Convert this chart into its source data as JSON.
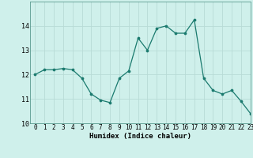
{
  "x": [
    0,
    1,
    2,
    3,
    4,
    5,
    6,
    7,
    8,
    9,
    10,
    11,
    12,
    13,
    14,
    15,
    16,
    17,
    18,
    19,
    20,
    21,
    22,
    23
  ],
  "y": [
    12.0,
    12.2,
    12.2,
    12.25,
    12.2,
    11.85,
    11.2,
    10.95,
    10.85,
    11.85,
    12.15,
    13.5,
    13.0,
    13.9,
    14.0,
    13.7,
    13.7,
    14.25,
    11.85,
    11.35,
    11.2,
    11.35,
    10.9,
    10.4
  ],
  "xlabel": "Humidex (Indice chaleur)",
  "ylim": [
    10,
    15
  ],
  "xlim": [
    -0.5,
    23
  ],
  "yticks": [
    10,
    11,
    12,
    13,
    14
  ],
  "xticks": [
    0,
    1,
    2,
    3,
    4,
    5,
    6,
    7,
    8,
    9,
    10,
    11,
    12,
    13,
    14,
    15,
    16,
    17,
    18,
    19,
    20,
    21,
    22,
    23
  ],
  "line_color": "#1a7a6e",
  "marker_size": 2.2,
  "bg_color": "#cff0eb",
  "grid_color_major": "#b8dbd6",
  "grid_color_minor": "#cce8e3",
  "xlabel_fontsize": 6.5,
  "tick_fontsize": 5.5
}
